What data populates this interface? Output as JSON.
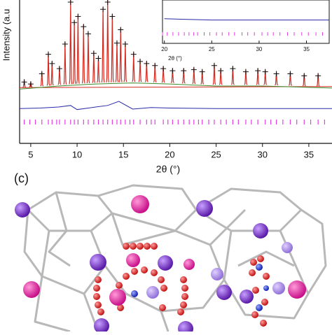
{
  "chart_data": {
    "type": "rietveld",
    "xlabel": "2θ (°)",
    "ylabel": "Intensity (a.u",
    "xlim": [
      3.8,
      37.5
    ],
    "xticks": [
      5,
      10,
      15,
      20,
      25,
      30,
      35
    ],
    "ylim": [
      -40,
      100
    ],
    "x": [
      4.3,
      5,
      6.2,
      6.9,
      7.3,
      8.1,
      8.7,
      9.3,
      9.7,
      10.1,
      10.7,
      11.2,
      11.8,
      12.3,
      12.8,
      13.3,
      13.8,
      14.3,
      14.7,
      15.2,
      16.1,
      16.8,
      17.5,
      18.4,
      19.3,
      20.3,
      21.5,
      22.6,
      23.5,
      24.8,
      25.5,
      26.8,
      28.2,
      29.5,
      30.3,
      31.5,
      33,
      34.5,
      36
    ],
    "values": [
      22,
      20,
      30,
      49,
      40,
      35,
      59,
      100,
      80,
      86,
      76,
      69,
      50,
      45,
      93,
      100,
      86,
      60,
      73,
      59,
      49,
      42,
      40,
      38,
      35,
      33,
      33,
      34,
      32,
      38,
      33,
      35,
      32,
      33,
      32,
      30,
      30,
      28,
      28
    ],
    "color": "#d42a20",
    "marker_color": "#111111",
    "background": {
      "color": "#3a8a2a",
      "x": [
        3.8,
        8,
        12,
        16,
        20,
        25,
        30,
        37.5
      ],
      "values": [
        13,
        16,
        18,
        19,
        18,
        16,
        16,
        14
      ]
    },
    "difference": {
      "color": "#2a2aa8",
      "x": [
        3.8,
        6,
        8,
        9.3,
        10,
        12,
        13.3,
        14.5,
        16,
        18,
        20,
        25,
        30,
        37.5
      ],
      "values": [
        -6,
        -5.5,
        -4.5,
        -3,
        -7,
        -4.5,
        -3,
        1,
        -6.5,
        -5,
        -5.5,
        -6,
        -6,
        -6
      ]
    },
    "reflections": {
      "color": "#e040e0",
      "x": [
        4.3,
        4.9,
        5.5,
        6.2,
        6.9,
        7.3,
        7.8,
        8.1,
        8.7,
        9.3,
        9.7,
        10.1,
        10.7,
        11.2,
        11.8,
        12.3,
        12.8,
        13.3,
        13.8,
        14.3,
        14.7,
        15.2,
        15.7,
        16.1,
        16.8,
        17.5,
        18,
        18.4,
        19.3,
        19.8,
        20.3,
        20.9,
        21.5,
        22.1,
        22.6,
        23.1,
        23.5,
        24.2,
        24.8,
        25.5,
        26.1,
        26.8,
        27.4,
        28.2,
        28.8,
        29.5,
        30.3,
        30.9,
        31.5,
        32.2,
        33,
        33.7,
        34.5,
        35.2,
        36,
        36.7
      ]
    },
    "inset": {
      "xlabel": "2θ (°)",
      "xlim": [
        19.8,
        37.4
      ],
      "xticks": [
        20,
        25,
        30,
        35
      ],
      "ylim": [
        -9,
        0
      ]
    }
  },
  "panel_label": "(c)"
}
